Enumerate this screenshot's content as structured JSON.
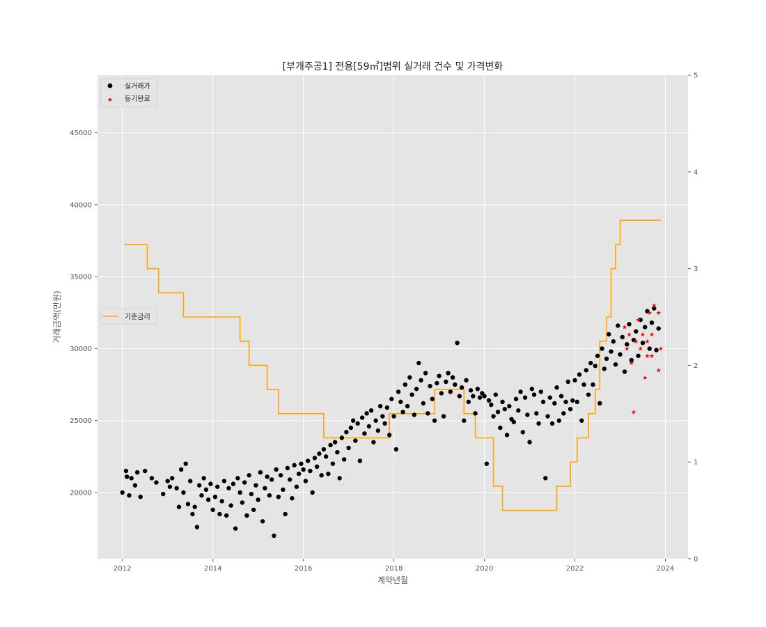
{
  "chart_data": {
    "type": "scatter",
    "title": "[부개주공1] 전용[59㎡]범위 실거래 건수 및 가격변화",
    "xlabel": "계약년월",
    "ylabel": "거래금액(만원)",
    "xlim": [
      2011.45,
      2024.5
    ],
    "ylim": [
      15400,
      49000
    ],
    "y2lim": [
      0,
      5
    ],
    "x_ticks": [
      "2012",
      "2014",
      "2016",
      "2018",
      "2020",
      "2022",
      "2024"
    ],
    "y_ticks": [
      "20000",
      "25000",
      "30000",
      "35000",
      "40000",
      "45000"
    ],
    "y2_ticks": [
      "0",
      "1",
      "2",
      "3",
      "4",
      "5"
    ],
    "grid": true,
    "colors": {
      "trade": "#000000",
      "registered": "#ff0000",
      "rate": "#ffa500",
      "plot_bg": "#e5e5e5",
      "grid": "#ffffff"
    },
    "legend_main": {
      "placement": "top-left",
      "entries": [
        "실거래가",
        "등기완료"
      ]
    },
    "legend_rate": {
      "placement": "center-left",
      "entries": [
        "기준금리"
      ]
    },
    "series": [
      {
        "name": "실거래가",
        "kind": "scatter",
        "points": [
          [
            2012.0,
            20000
          ],
          [
            2012.08,
            21500
          ],
          [
            2012.1,
            21100
          ],
          [
            2012.15,
            19800
          ],
          [
            2012.2,
            21000
          ],
          [
            2012.28,
            20500
          ],
          [
            2012.33,
            21400
          ],
          [
            2012.4,
            19700
          ],
          [
            2012.5,
            21500
          ],
          [
            2012.65,
            21000
          ],
          [
            2012.75,
            20700
          ],
          [
            2012.9,
            19900
          ],
          [
            2013.0,
            20800
          ],
          [
            2013.05,
            20400
          ],
          [
            2013.1,
            21000
          ],
          [
            2013.2,
            20300
          ],
          [
            2013.25,
            19000
          ],
          [
            2013.3,
            21600
          ],
          [
            2013.35,
            20000
          ],
          [
            2013.4,
            22000
          ],
          [
            2013.45,
            19200
          ],
          [
            2013.5,
            20800
          ],
          [
            2013.55,
            18500
          ],
          [
            2013.6,
            19000
          ],
          [
            2013.65,
            17600
          ],
          [
            2013.7,
            20500
          ],
          [
            2013.75,
            19800
          ],
          [
            2013.8,
            21000
          ],
          [
            2013.85,
            20200
          ],
          [
            2013.9,
            19500
          ],
          [
            2013.95,
            20600
          ],
          [
            2014.0,
            18800
          ],
          [
            2014.05,
            19700
          ],
          [
            2014.1,
            20400
          ],
          [
            2014.15,
            18500
          ],
          [
            2014.2,
            19400
          ],
          [
            2014.25,
            20800
          ],
          [
            2014.3,
            18400
          ],
          [
            2014.35,
            20300
          ],
          [
            2014.4,
            19100
          ],
          [
            2014.45,
            20600
          ],
          [
            2014.5,
            17500
          ],
          [
            2014.55,
            21000
          ],
          [
            2014.6,
            20000
          ],
          [
            2014.65,
            19300
          ],
          [
            2014.7,
            20700
          ],
          [
            2014.75,
            18400
          ],
          [
            2014.8,
            21200
          ],
          [
            2014.85,
            19900
          ],
          [
            2014.9,
            18800
          ],
          [
            2014.95,
            20500
          ],
          [
            2015.0,
            19500
          ],
          [
            2015.05,
            21400
          ],
          [
            2015.1,
            18000
          ],
          [
            2015.15,
            20300
          ],
          [
            2015.2,
            21100
          ],
          [
            2015.25,
            19800
          ],
          [
            2015.3,
            20900
          ],
          [
            2015.35,
            17000
          ],
          [
            2015.4,
            21600
          ],
          [
            2015.45,
            19700
          ],
          [
            2015.5,
            21200
          ],
          [
            2015.55,
            20200
          ],
          [
            2015.6,
            18500
          ],
          [
            2015.65,
            21700
          ],
          [
            2015.7,
            20900
          ],
          [
            2015.75,
            19600
          ],
          [
            2015.8,
            21900
          ],
          [
            2015.85,
            20400
          ],
          [
            2015.9,
            21300
          ],
          [
            2015.95,
            22000
          ],
          [
            2016.0,
            21600
          ],
          [
            2016.05,
            20800
          ],
          [
            2016.1,
            22200
          ],
          [
            2016.15,
            21500
          ],
          [
            2016.2,
            20000
          ],
          [
            2016.25,
            22400
          ],
          [
            2016.3,
            21800
          ],
          [
            2016.35,
            22700
          ],
          [
            2016.4,
            21200
          ],
          [
            2016.45,
            23000
          ],
          [
            2016.5,
            22500
          ],
          [
            2016.55,
            21300
          ],
          [
            2016.6,
            23300
          ],
          [
            2016.65,
            22000
          ],
          [
            2016.7,
            23500
          ],
          [
            2016.75,
            22800
          ],
          [
            2016.8,
            21000
          ],
          [
            2016.85,
            23800
          ],
          [
            2016.9,
            22300
          ],
          [
            2016.95,
            24200
          ],
          [
            2017.0,
            23100
          ],
          [
            2017.05,
            24500
          ],
          [
            2017.1,
            25000
          ],
          [
            2017.15,
            23600
          ],
          [
            2017.2,
            24800
          ],
          [
            2017.25,
            22200
          ],
          [
            2017.3,
            25200
          ],
          [
            2017.35,
            24100
          ],
          [
            2017.4,
            25500
          ],
          [
            2017.45,
            24600
          ],
          [
            2017.5,
            25700
          ],
          [
            2017.55,
            23500
          ],
          [
            2017.6,
            25000
          ],
          [
            2017.65,
            24300
          ],
          [
            2017.7,
            26000
          ],
          [
            2017.75,
            25300
          ],
          [
            2017.8,
            24800
          ],
          [
            2017.85,
            25900
          ],
          [
            2017.9,
            24000
          ],
          [
            2017.95,
            26500
          ],
          [
            2018.0,
            25300
          ],
          [
            2018.05,
            23000
          ],
          [
            2018.1,
            27000
          ],
          [
            2018.15,
            26300
          ],
          [
            2018.2,
            25600
          ],
          [
            2018.25,
            27500
          ],
          [
            2018.3,
            26000
          ],
          [
            2018.35,
            28000
          ],
          [
            2018.4,
            26800
          ],
          [
            2018.45,
            25400
          ],
          [
            2018.5,
            27200
          ],
          [
            2018.55,
            29000
          ],
          [
            2018.6,
            27800
          ],
          [
            2018.65,
            26200
          ],
          [
            2018.7,
            28300
          ],
          [
            2018.75,
            25500
          ],
          [
            2018.8,
            27400
          ],
          [
            2018.85,
            26500
          ],
          [
            2018.9,
            25000
          ],
          [
            2018.95,
            27600
          ],
          [
            2019.0,
            28100
          ],
          [
            2019.05,
            26900
          ],
          [
            2019.1,
            25300
          ],
          [
            2019.15,
            27700
          ],
          [
            2019.2,
            28300
          ],
          [
            2019.25,
            27000
          ],
          [
            2019.3,
            28000
          ],
          [
            2019.35,
            27500
          ],
          [
            2019.4,
            30400
          ],
          [
            2019.45,
            26700
          ],
          [
            2019.5,
            27300
          ],
          [
            2019.55,
            25000
          ],
          [
            2019.6,
            27800
          ],
          [
            2019.65,
            26300
          ],
          [
            2019.7,
            27100
          ],
          [
            2019.75,
            26700
          ],
          [
            2019.8,
            25500
          ],
          [
            2019.85,
            27200
          ],
          [
            2019.9,
            26600
          ],
          [
            2019.95,
            26900
          ],
          [
            2020.0,
            26700
          ],
          [
            2020.05,
            22000
          ],
          [
            2020.1,
            26400
          ],
          [
            2020.15,
            26100
          ],
          [
            2020.2,
            25300
          ],
          [
            2020.25,
            26800
          ],
          [
            2020.3,
            25600
          ],
          [
            2020.35,
            24500
          ],
          [
            2020.4,
            26300
          ],
          [
            2020.45,
            25800
          ],
          [
            2020.5,
            24000
          ],
          [
            2020.55,
            26000
          ],
          [
            2020.6,
            25100
          ],
          [
            2020.65,
            24900
          ],
          [
            2020.7,
            26500
          ],
          [
            2020.75,
            25700
          ],
          [
            2020.8,
            27000
          ],
          [
            2020.85,
            24200
          ],
          [
            2020.9,
            26600
          ],
          [
            2020.95,
            25400
          ],
          [
            2021.0,
            23500
          ],
          [
            2021.05,
            27200
          ],
          [
            2021.1,
            26800
          ],
          [
            2021.15,
            25500
          ],
          [
            2021.2,
            24800
          ],
          [
            2021.25,
            27000
          ],
          [
            2021.3,
            26300
          ],
          [
            2021.35,
            21000
          ],
          [
            2021.4,
            25300
          ],
          [
            2021.45,
            26600
          ],
          [
            2021.5,
            24800
          ],
          [
            2021.55,
            26200
          ],
          [
            2021.6,
            27300
          ],
          [
            2021.65,
            25000
          ],
          [
            2021.7,
            26700
          ],
          [
            2021.75,
            25500
          ],
          [
            2021.8,
            26300
          ],
          [
            2021.85,
            27700
          ],
          [
            2021.9,
            25800
          ],
          [
            2021.95,
            26400
          ],
          [
            2022.0,
            27800
          ],
          [
            2022.05,
            26300
          ],
          [
            2022.1,
            28200
          ],
          [
            2022.15,
            25000
          ],
          [
            2022.2,
            27500
          ],
          [
            2022.25,
            28500
          ],
          [
            2022.3,
            26800
          ],
          [
            2022.35,
            29000
          ],
          [
            2022.4,
            27500
          ],
          [
            2022.45,
            28800
          ],
          [
            2022.5,
            29500
          ],
          [
            2022.55,
            26200
          ],
          [
            2022.6,
            30000
          ],
          [
            2022.65,
            28600
          ],
          [
            2022.7,
            29300
          ],
          [
            2022.75,
            31000
          ],
          [
            2022.8,
            29800
          ],
          [
            2022.85,
            30500
          ],
          [
            2022.9,
            28900
          ],
          [
            2022.95,
            31600
          ],
          [
            2023.0,
            29600
          ],
          [
            2023.05,
            30800
          ],
          [
            2023.1,
            28400
          ],
          [
            2023.15,
            30300
          ],
          [
            2023.2,
            31700
          ],
          [
            2023.25,
            29200
          ],
          [
            2023.3,
            30600
          ],
          [
            2023.35,
            31200
          ],
          [
            2023.4,
            29500
          ],
          [
            2023.45,
            32000
          ],
          [
            2023.5,
            30400
          ],
          [
            2023.55,
            31500
          ],
          [
            2023.6,
            32600
          ],
          [
            2023.65,
            30000
          ],
          [
            2023.7,
            31800
          ],
          [
            2023.75,
            32800
          ],
          [
            2023.8,
            29900
          ],
          [
            2023.85,
            31400
          ]
        ]
      },
      {
        "name": "등기완료",
        "kind": "scatter",
        "points": [
          [
            2023.1,
            31500
          ],
          [
            2023.15,
            30000
          ],
          [
            2023.2,
            31000
          ],
          [
            2023.25,
            29000
          ],
          [
            2023.3,
            25600
          ],
          [
            2023.35,
            30500
          ],
          [
            2023.4,
            32000
          ],
          [
            2023.45,
            30000
          ],
          [
            2023.5,
            31000
          ],
          [
            2023.55,
            28000
          ],
          [
            2023.6,
            29500
          ],
          [
            2023.65,
            32500
          ],
          [
            2023.7,
            31000
          ],
          [
            2023.75,
            33000
          ],
          [
            2023.85,
            32500
          ],
          [
            2023.9,
            30000
          ],
          [
            2023.7,
            29500
          ],
          [
            2023.85,
            28500
          ],
          [
            2023.6,
            30500
          ]
        ]
      },
      {
        "name": "기준금리",
        "kind": "step",
        "axis": "right",
        "points": [
          [
            2012.05,
            3.25
          ],
          [
            2012.55,
            3.0
          ],
          [
            2012.8,
            2.75
          ],
          [
            2013.35,
            2.5
          ],
          [
            2014.6,
            2.25
          ],
          [
            2014.8,
            2.0
          ],
          [
            2015.2,
            1.75
          ],
          [
            2015.45,
            1.5
          ],
          [
            2016.45,
            1.25
          ],
          [
            2017.9,
            1.5
          ],
          [
            2018.9,
            1.75
          ],
          [
            2019.55,
            1.5
          ],
          [
            2019.8,
            1.25
          ],
          [
            2020.2,
            0.75
          ],
          [
            2020.4,
            0.5
          ],
          [
            2021.6,
            0.75
          ],
          [
            2021.9,
            1.0
          ],
          [
            2022.05,
            1.25
          ],
          [
            2022.3,
            1.5
          ],
          [
            2022.45,
            1.75
          ],
          [
            2022.55,
            2.25
          ],
          [
            2022.7,
            2.5
          ],
          [
            2022.8,
            3.0
          ],
          [
            2022.9,
            3.25
          ],
          [
            2023.0,
            3.5
          ],
          [
            2023.9,
            3.5
          ]
        ]
      }
    ]
  }
}
